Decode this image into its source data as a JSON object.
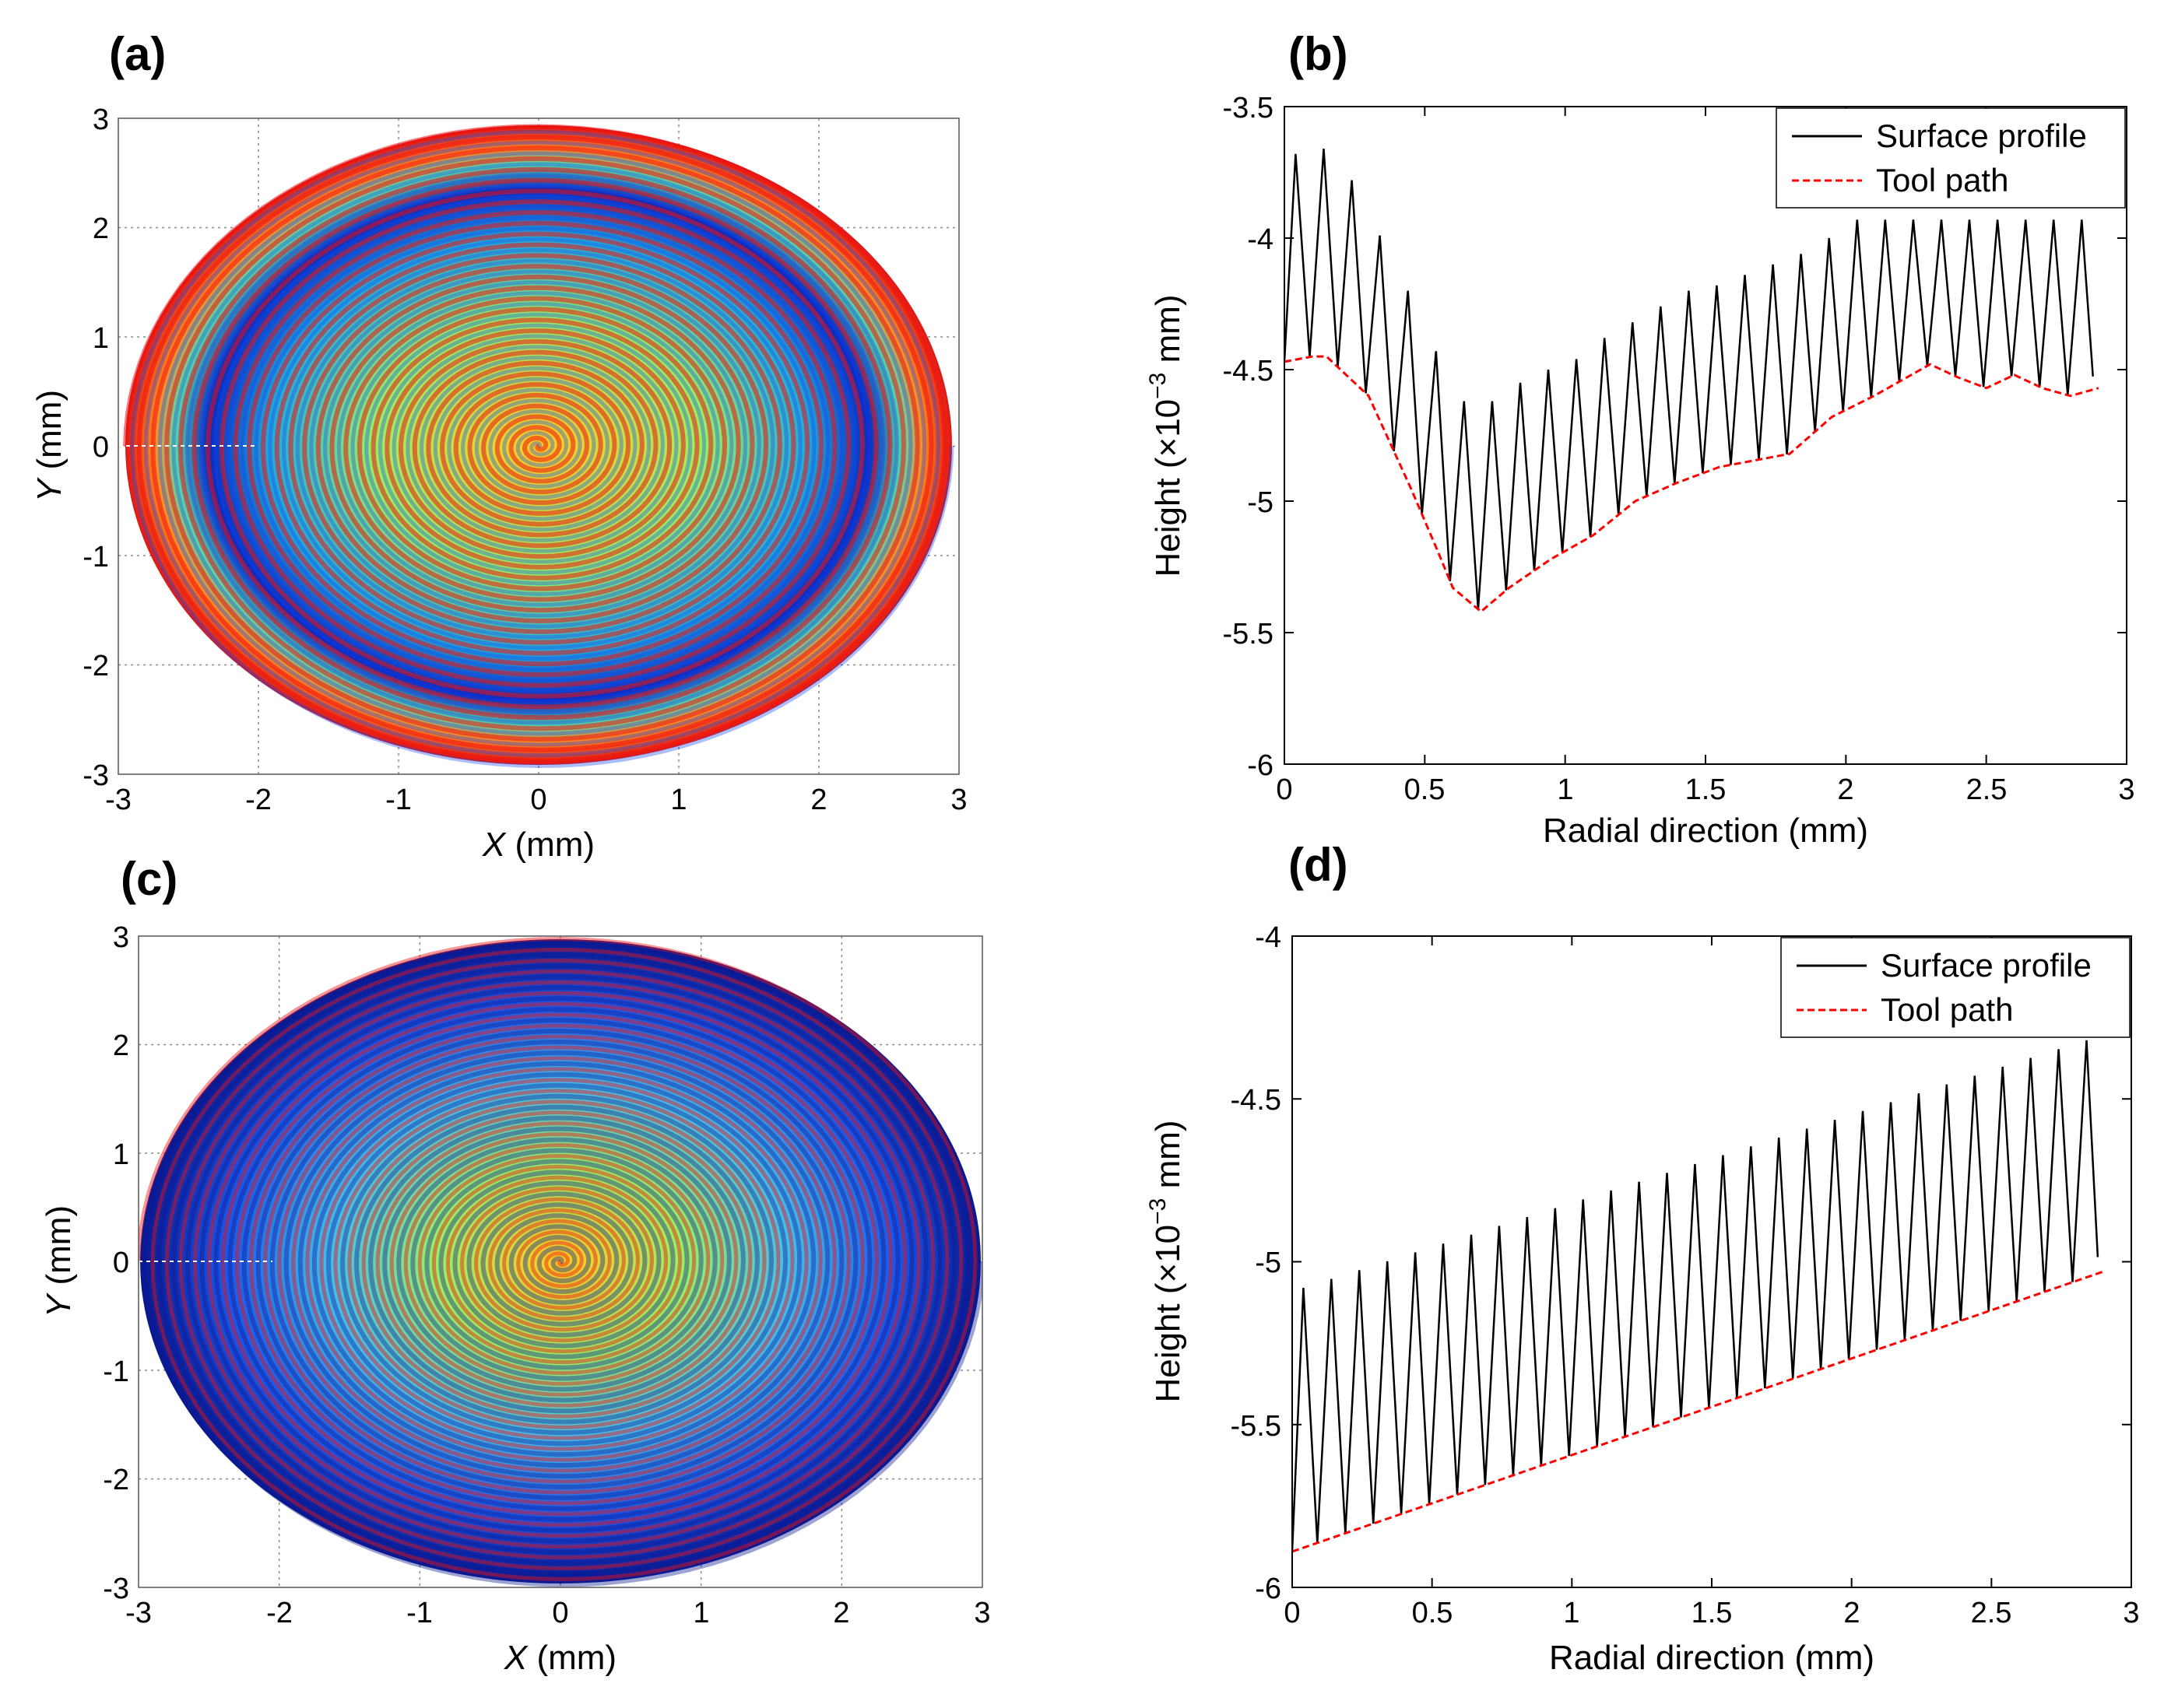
{
  "colors": {
    "surface_profile": "#000000",
    "tool_path": "#ff0000",
    "grid": "#888888",
    "map_hot": "#ee1111",
    "map_mid": "#ffdd22",
    "map_green": "#88ee66",
    "map_cyan": "#33ccee",
    "map_blue": "#1144ee",
    "map_dark": "#0a1890"
  },
  "chart_data": [
    {
      "id": "a",
      "panel_label": "(a)",
      "type": "heatmap",
      "description_key": "spiral surface topography map",
      "xlabel_var": "X",
      "xlabel_unit": " (mm)",
      "ylabel_var": "Y",
      "ylabel_unit": " (mm)",
      "xlim": [
        -3,
        3
      ],
      "ylim": [
        -3,
        3
      ],
      "xticks": [
        "-3",
        "-2",
        "-1",
        "0",
        "1",
        "2",
        "3"
      ],
      "yticks": [
        "3",
        "2",
        "1",
        "0",
        "-1",
        "-2",
        "-3"
      ],
      "grid": true,
      "spiral_turns": 30,
      "outer_radius": 2.95
    },
    {
      "id": "b",
      "panel_label": "(b)",
      "type": "line",
      "xlabel": "Radial direction (mm)",
      "ylabel_main": "Height (×10",
      "ylabel_exp": "−3",
      "ylabel_unit": " mm)",
      "xlim": [
        0,
        3
      ],
      "ylim": [
        -6,
        -3.5
      ],
      "xticks": [
        "0",
        "0.5",
        "1",
        "1.5",
        "2",
        "2.5",
        "3"
      ],
      "yticks": [
        "-3.5",
        "-4",
        "-4.5",
        "-5",
        "-5.5",
        "-6"
      ],
      "legend_position": "top-right",
      "series": [
        {
          "name": "Surface profile",
          "style": "solid",
          "peak_pitch": 0.1,
          "x_end": 2.88,
          "peaks": [
            [
              0.04,
              -3.68
            ],
            [
              0.14,
              -3.66
            ],
            [
              0.24,
              -3.78
            ],
            [
              0.34,
              -3.99
            ],
            [
              0.44,
              -4.2
            ],
            [
              0.54,
              -4.43
            ],
            [
              0.64,
              -4.62
            ],
            [
              0.74,
              -4.62
            ],
            [
              0.84,
              -4.55
            ],
            [
              0.94,
              -4.5
            ],
            [
              1.04,
              -4.46
            ],
            [
              1.14,
              -4.38
            ],
            [
              1.24,
              -4.32
            ],
            [
              1.34,
              -4.26
            ],
            [
              1.44,
              -4.2
            ],
            [
              1.54,
              -4.18
            ],
            [
              1.64,
              -4.14
            ],
            [
              1.74,
              -4.1
            ],
            [
              1.84,
              -4.06
            ],
            [
              1.94,
              -4.0
            ],
            [
              2.04,
              -3.93
            ],
            [
              2.14,
              -3.93
            ],
            [
              2.24,
              -3.93
            ],
            [
              2.34,
              -3.93
            ],
            [
              2.44,
              -3.93
            ],
            [
              2.54,
              -3.93
            ],
            [
              2.64,
              -3.93
            ],
            [
              2.74,
              -3.93
            ],
            [
              2.84,
              -3.93
            ]
          ]
        },
        {
          "name": "Tool path",
          "style": "dashed",
          "points": [
            [
              0,
              -4.47
            ],
            [
              0.1,
              -4.45
            ],
            [
              0.15,
              -4.45
            ],
            [
              0.3,
              -4.6
            ],
            [
              0.45,
              -4.95
            ],
            [
              0.55,
              -5.2
            ],
            [
              0.6,
              -5.33
            ],
            [
              0.7,
              -5.42
            ],
            [
              0.8,
              -5.33
            ],
            [
              0.95,
              -5.22
            ],
            [
              1.1,
              -5.13
            ],
            [
              1.25,
              -5.0
            ],
            [
              1.4,
              -4.93
            ],
            [
              1.55,
              -4.87
            ],
            [
              1.8,
              -4.82
            ],
            [
              1.95,
              -4.68
            ],
            [
              2.1,
              -4.6
            ],
            [
              2.3,
              -4.48
            ],
            [
              2.4,
              -4.53
            ],
            [
              2.5,
              -4.57
            ],
            [
              2.6,
              -4.52
            ],
            [
              2.7,
              -4.57
            ],
            [
              2.8,
              -4.6
            ],
            [
              2.9,
              -4.57
            ]
          ]
        }
      ]
    },
    {
      "id": "c",
      "panel_label": "(c)",
      "type": "heatmap",
      "description_key": "spiral surface topography map",
      "xlabel_var": "X",
      "xlabel_unit": " (mm)",
      "ylabel_var": "Y",
      "ylabel_unit": " (mm)",
      "xlim": [
        -3,
        3
      ],
      "ylim": [
        -3,
        3
      ],
      "xticks": [
        "-3",
        "-2",
        "-1",
        "0",
        "1",
        "2",
        "3"
      ],
      "yticks": [
        "3",
        "2",
        "1",
        "0",
        "-1",
        "-2",
        "-3"
      ],
      "grid": true,
      "spiral_turns": 30,
      "outer_radius": 3.0
    },
    {
      "id": "d",
      "panel_label": "(d)",
      "type": "line",
      "xlabel": "Radial direction (mm)",
      "ylabel_main": "Height (×10",
      "ylabel_exp": "−3",
      "ylabel_unit": " mm)",
      "xlim": [
        0,
        3
      ],
      "ylim": [
        -6,
        -4
      ],
      "xticks": [
        "0",
        "0.5",
        "1",
        "1.5",
        "2",
        "2.5",
        "3"
      ],
      "yticks": [
        "-4",
        "-4.5",
        "-5",
        "-5.5",
        "-6"
      ],
      "legend_position": "top-right",
      "series": [
        {
          "name": "Surface profile",
          "style": "solid",
          "peak_pitch": 0.1,
          "x_end": 2.88,
          "peaks_linear": {
            "x0": 0.04,
            "y0": -5.08,
            "x1": 2.84,
            "y1": -4.32
          }
        },
        {
          "name": "Tool path",
          "style": "dashed",
          "points": [
            [
              0,
              -5.89
            ],
            [
              2.9,
              -5.03
            ]
          ]
        }
      ]
    }
  ]
}
